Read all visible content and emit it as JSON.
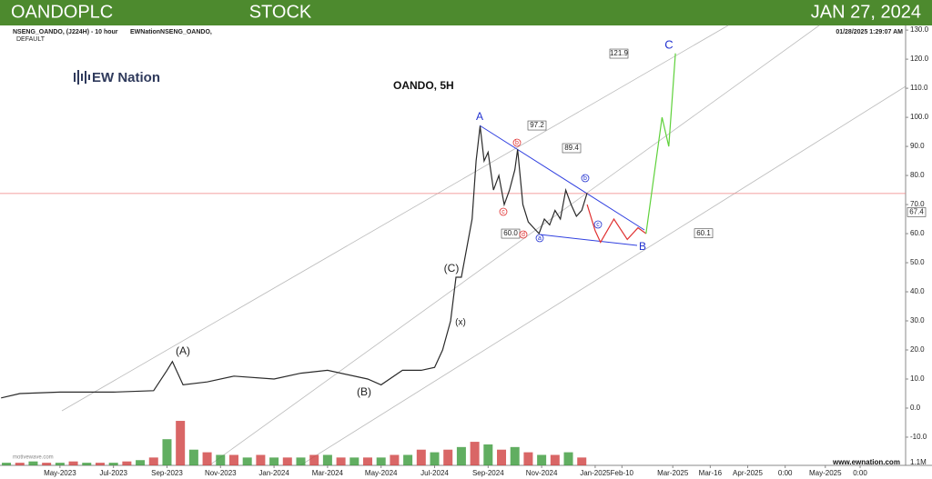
{
  "header": {
    "left": "OANDOPLC",
    "center": "STOCK",
    "right": "JAN 27, 2024"
  },
  "chart_data": {
    "type": "line",
    "instrument": "NSENG_OANDO, (J224H) - 10 hour",
    "source": "EWNationNSENG_OANDO,",
    "template": "DEFAULT",
    "timestamp": "01/28/2025 1:29:07 AM",
    "title": "OANDO, 5H",
    "logo": "EW Nation",
    "website": "www.ewnation.com",
    "watermark": "motivewave.com",
    "xlim": [
      -2.24,
      31.6
    ],
    "ylim": [
      -19.7,
      131.6
    ],
    "xticks": [
      {
        "value": 0,
        "label": "May-2023"
      },
      {
        "value": 2,
        "label": "Jul-2023"
      },
      {
        "value": 4,
        "label": "Sep-2023"
      },
      {
        "value": 6,
        "label": "Nov-2023"
      },
      {
        "value": 8,
        "label": "Jan-2024"
      },
      {
        "value": 10,
        "label": "Mar-2024"
      },
      {
        "value": 12,
        "label": "May-2024"
      },
      {
        "value": 14,
        "label": "Jul-2024"
      },
      {
        "value": 16,
        "label": "Sep-2024"
      },
      {
        "value": 18,
        "label": "Nov-2024"
      },
      {
        "value": 20,
        "label": "Jan-2025"
      },
      {
        "value": 21.0,
        "label": "Feb-10"
      },
      {
        "value": 22.9,
        "label": "Mar-2025"
      },
      {
        "value": 24.3,
        "label": "Mar-16"
      },
      {
        "value": 25.7,
        "label": "Apr-2025"
      },
      {
        "value": 27.1,
        "label": "0:00"
      },
      {
        "value": 28.6,
        "label": "May-2025"
      },
      {
        "value": 29.9,
        "label": "0:00"
      }
    ],
    "yticks": [
      {
        "value": -10,
        "label": "-10.0"
      },
      {
        "value": 0,
        "label": "0.0"
      },
      {
        "value": 10,
        "label": "10.0"
      },
      {
        "value": 20,
        "label": "20.0"
      },
      {
        "value": 30,
        "label": "30.0"
      },
      {
        "value": 40,
        "label": "40.0"
      },
      {
        "value": 50,
        "label": "50.0"
      },
      {
        "value": 60,
        "label": "60.0"
      },
      {
        "value": 70,
        "label": "70.0"
      },
      {
        "value": 80,
        "label": "80.0"
      },
      {
        "value": 90,
        "label": "90.0"
      },
      {
        "value": 100,
        "label": "100.0"
      },
      {
        "value": 110,
        "label": "110.0"
      },
      {
        "value": 120,
        "label": "120.0"
      },
      {
        "value": 130,
        "label": "130.0"
      }
    ],
    "series": [
      {
        "color": "#2a2a2a",
        "x": [
          -2.2,
          -1.5,
          0,
          2,
          3.5,
          4,
          4.2,
          4.6,
          5.5,
          6.5,
          8,
          9,
          10,
          11.5,
          12,
          12.8,
          13.5,
          14,
          14.3,
          14.6,
          14.8,
          15,
          15.2,
          15.4,
          15.55,
          15.7,
          15.85,
          16.0,
          16.2,
          16.4,
          16.6,
          16.8,
          17.0,
          17.1,
          17.3,
          17.5,
          17.7,
          17.9,
          18.1,
          18.3,
          18.5,
          18.7,
          18.9,
          19.1,
          19.3,
          19.5,
          19.7
        ],
        "values": [
          3.5,
          5,
          5.5,
          5.5,
          6,
          13,
          16,
          8,
          9,
          11,
          10,
          12,
          13,
          10,
          8,
          13,
          13,
          14,
          20,
          30,
          45,
          45,
          55,
          65,
          85,
          97,
          85,
          88,
          75,
          80,
          70,
          75,
          82,
          89,
          70,
          64,
          62,
          60,
          65,
          63,
          68,
          65,
          75,
          70,
          66,
          68,
          74
        ]
      },
      {
        "color": "#e03030",
        "x": [
          19.7,
          20.0,
          20.2,
          20.7,
          21.2,
          21.6,
          21.9
        ],
        "values": [
          70,
          61,
          57,
          65,
          58,
          62,
          60
        ]
      },
      {
        "color": "#5ed13a",
        "x": [
          21.9,
          22.5,
          22.75,
          23.0
        ],
        "values": [
          60,
          100,
          90,
          122
        ]
      }
    ],
    "reference_line": {
      "value": 73.8,
      "color": "#f08080"
    },
    "volume": {
      "vlim": [
        0,
        2.5
      ],
      "colors": [
        "#3a9a3a",
        "#d04040"
      ],
      "x": [
        -2,
        -1.5,
        -1,
        -0.5,
        0,
        0.5,
        1,
        1.5,
        2,
        2.5,
        3,
        3.5,
        4,
        4.5,
        5,
        5.5,
        6,
        6.5,
        7,
        7.5,
        8,
        8.5,
        9,
        9.5,
        10,
        10.5,
        11,
        11.5,
        12,
        12.5,
        13,
        13.5,
        14,
        14.5,
        15,
        15.5,
        16,
        16.5,
        17,
        17.5,
        18,
        18.5,
        19,
        19.5
      ],
      "values": [
        0.1,
        0.1,
        0.15,
        0.1,
        0.1,
        0.15,
        0.1,
        0.1,
        0.1,
        0.15,
        0.2,
        0.3,
        1.0,
        1.7,
        0.6,
        0.5,
        0.4,
        0.4,
        0.3,
        0.4,
        0.3,
        0.3,
        0.3,
        0.4,
        0.4,
        0.3,
        0.3,
        0.3,
        0.3,
        0.4,
        0.4,
        0.6,
        0.5,
        0.6,
        0.7,
        0.9,
        0.8,
        0.6,
        0.7,
        0.5,
        0.4,
        0.4,
        0.5,
        0.3
      ],
      "label": "1.1M"
    },
    "price_labels": [
      {
        "value": 97.2,
        "label": "97.2"
      },
      {
        "value": 89.4,
        "label": "89.4"
      },
      {
        "value": 60,
        "label": "60.0"
      },
      {
        "value": 60.1,
        "label": "60.1"
      },
      {
        "value": 121.9,
        "label": "121.9"
      },
      {
        "value": 67.4,
        "label": "67.4"
      }
    ],
    "annotations": [
      {
        "text": "A",
        "color": "#2030d0"
      },
      {
        "text": "B",
        "color": "#2030d0"
      },
      {
        "text": "C",
        "color": "#2030d0"
      },
      {
        "text": "(A)",
        "color": "#222"
      },
      {
        "text": "(B)",
        "color": "#222"
      },
      {
        "text": "(C)",
        "color": "#222"
      },
      {
        "text": "(x)",
        "color": "#222"
      },
      {
        "text": "a",
        "color": "#2030d0"
      },
      {
        "text": "b",
        "color": "#2030d0"
      },
      {
        "text": "c",
        "color": "#2030d0"
      },
      {
        "text": "b",
        "color": "#e03030"
      },
      {
        "text": "c",
        "color": "#e03030"
      },
      {
        "text": "d",
        "color": "#e03030"
      }
    ]
  }
}
